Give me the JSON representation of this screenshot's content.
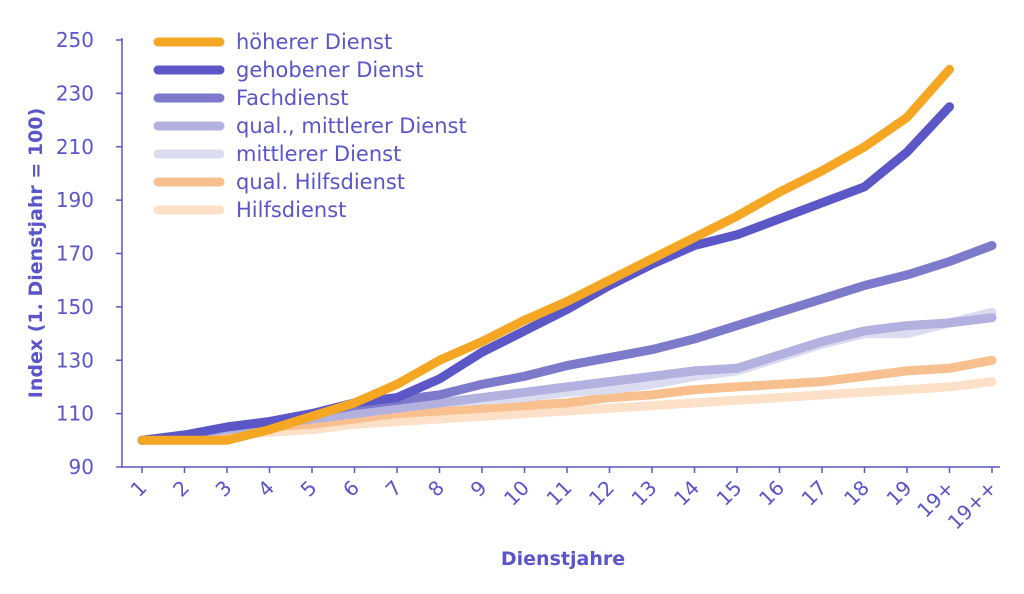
{
  "chart_data": {
    "type": "line",
    "title": "",
    "xlabel": "Dienstjahre",
    "ylabel": "Index (1. Dienstjahr = 100)",
    "ylim": [
      90,
      250
    ],
    "yticks": [
      90,
      110,
      130,
      150,
      170,
      190,
      210,
      230,
      250
    ],
    "categories": [
      "1",
      "2",
      "3",
      "4",
      "5",
      "6",
      "7",
      "8",
      "9",
      "10",
      "11",
      "12",
      "13",
      "14",
      "15",
      "16",
      "17",
      "18",
      "19",
      "19+",
      "19++"
    ],
    "grid": false,
    "legend_position": "top-left",
    "series": [
      {
        "name": "höherer Dienst",
        "color": "#f5a623",
        "values": [
          100,
          100,
          100,
          104,
          109,
          114,
          121,
          130,
          137,
          145,
          152,
          160,
          168,
          176,
          184,
          193,
          201,
          210,
          221,
          239,
          null
        ]
      },
      {
        "name": "gehobener Dienst",
        "color": "#5b57c6",
        "values": [
          100,
          102,
          105,
          107,
          110,
          114,
          116,
          123,
          133,
          141,
          149,
          158,
          166,
          173,
          177,
          183,
          189,
          195,
          208,
          225,
          null
        ]
      },
      {
        "name": "Fachdienst",
        "color": "#7d7acc",
        "values": [
          100,
          102,
          105,
          107,
          110,
          113,
          115,
          117,
          121,
          124,
          128,
          131,
          134,
          138,
          143,
          148,
          153,
          158,
          162,
          167,
          173
        ]
      },
      {
        "name": "qual., mittlerer Dienst",
        "color": "#b3b1e0",
        "values": [
          100,
          102,
          104,
          106,
          108,
          110,
          112,
          114,
          116,
          118,
          120,
          122,
          124,
          126,
          127,
          132,
          137,
          141,
          143,
          144,
          146
        ]
      },
      {
        "name": "mittlerer Dienst",
        "color": "#dcdcf0",
        "values": [
          100,
          102,
          104,
          106,
          108,
          110,
          112,
          114,
          115,
          116,
          118,
          119,
          121,
          124,
          126,
          131,
          136,
          140,
          140,
          144,
          148
        ]
      },
      {
        "name": "qual. Hilfsdienst",
        "color": "#f8c08e",
        "values": [
          100,
          101,
          103,
          105,
          106,
          108,
          110,
          111,
          112,
          113,
          114,
          116,
          117,
          119,
          120,
          121,
          122,
          124,
          126,
          127,
          130
        ]
      },
      {
        "name": "Hilfsdienst",
        "color": "#fde0c8",
        "values": [
          100,
          101,
          102,
          103,
          104,
          106,
          107,
          108,
          109,
          110,
          111,
          112,
          113,
          114,
          115,
          116,
          117,
          118,
          119,
          120,
          122
        ]
      }
    ]
  }
}
